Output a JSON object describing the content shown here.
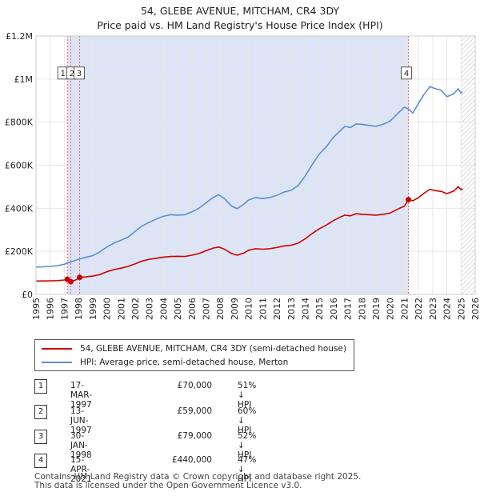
{
  "title_line1": "54, GLEBE AVENUE, MITCHAM, CR4 3DY",
  "title_line2": "Price paid vs. HM Land Registry's House Price Index (HPI)",
  "chart_data": {
    "type": "line",
    "x_start": 1995,
    "x_end": 2026,
    "ylim": [
      0,
      1200000
    ],
    "y_ticks": [
      {
        "value": 0,
        "label": "£0"
      },
      {
        "value": 200000,
        "label": "£200K"
      },
      {
        "value": 400000,
        "label": "£400K"
      },
      {
        "value": 600000,
        "label": "£600K"
      },
      {
        "value": 800000,
        "label": "£800K"
      },
      {
        "value": 1000000,
        "label": "£1M"
      },
      {
        "value": 1200000,
        "label": "£1.2M"
      }
    ],
    "x_ticks": [
      "1995",
      "1996",
      "1997",
      "1998",
      "1999",
      "2000",
      "2001",
      "2002",
      "2003",
      "2004",
      "2005",
      "2006",
      "2007",
      "2008",
      "2009",
      "2010",
      "2011",
      "2012",
      "2013",
      "2014",
      "2015",
      "2016",
      "2017",
      "2018",
      "2019",
      "2020",
      "2021",
      "2022",
      "2023",
      "2024",
      "2025",
      "2026"
    ],
    "grid": true,
    "shaded_from": 1997.21,
    "shaded_to": 2021.29,
    "hatched_from": 2025.0,
    "colors": {
      "property": "#cc0000",
      "hpi": "#5b8fd0",
      "shade": "#dde4f5",
      "grid": "#e6e6e6",
      "marker_line": "#e06060"
    },
    "series": [
      {
        "name": "54, GLEBE AVENUE, MITCHAM, CR4 3DY (semi-detached house)",
        "color": "#cc0000",
        "points": [
          [
            1995.0,
            62000
          ],
          [
            1995.5,
            62500
          ],
          [
            1996.0,
            63000
          ],
          [
            1996.5,
            64000
          ],
          [
            1997.0,
            67000
          ],
          [
            1997.21,
            70000
          ],
          [
            1997.3,
            64000
          ],
          [
            1997.45,
            59000
          ],
          [
            1997.6,
            62000
          ],
          [
            1997.8,
            67000
          ],
          [
            1998.08,
            79000
          ],
          [
            1998.5,
            81000
          ],
          [
            1999.0,
            85000
          ],
          [
            1999.5,
            92000
          ],
          [
            2000.0,
            105000
          ],
          [
            2000.5,
            115000
          ],
          [
            2001.0,
            122000
          ],
          [
            2001.5,
            130000
          ],
          [
            2002.0,
            142000
          ],
          [
            2002.5,
            155000
          ],
          [
            2003.0,
            163000
          ],
          [
            2003.5,
            168000
          ],
          [
            2004.0,
            173000
          ],
          [
            2004.5,
            176000
          ],
          [
            2005.0,
            177000
          ],
          [
            2005.5,
            176000
          ],
          [
            2006.0,
            182000
          ],
          [
            2006.5,
            190000
          ],
          [
            2007.0,
            203000
          ],
          [
            2007.5,
            215000
          ],
          [
            2007.9,
            220000
          ],
          [
            2008.3,
            210000
          ],
          [
            2008.8,
            190000
          ],
          [
            2009.2,
            182000
          ],
          [
            2009.7,
            193000
          ],
          [
            2010.0,
            205000
          ],
          [
            2010.5,
            212000
          ],
          [
            2011.0,
            210000
          ],
          [
            2011.5,
            212000
          ],
          [
            2012.0,
            218000
          ],
          [
            2012.5,
            225000
          ],
          [
            2013.0,
            228000
          ],
          [
            2013.5,
            238000
          ],
          [
            2014.0,
            258000
          ],
          [
            2014.5,
            283000
          ],
          [
            2015.0,
            305000
          ],
          [
            2015.5,
            322000
          ],
          [
            2016.0,
            343000
          ],
          [
            2016.5,
            360000
          ],
          [
            2016.8,
            368000
          ],
          [
            2017.2,
            365000
          ],
          [
            2017.6,
            375000
          ],
          [
            2018.0,
            372000
          ],
          [
            2018.5,
            370000
          ],
          [
            2019.0,
            368000
          ],
          [
            2019.5,
            372000
          ],
          [
            2020.0,
            378000
          ],
          [
            2020.5,
            395000
          ],
          [
            2021.0,
            410000
          ],
          [
            2021.29,
            440000
          ],
          [
            2021.6,
            435000
          ],
          [
            2022.0,
            450000
          ],
          [
            2022.4,
            470000
          ],
          [
            2022.8,
            488000
          ],
          [
            2023.2,
            482000
          ],
          [
            2023.6,
            478000
          ],
          [
            2024.0,
            468000
          ],
          [
            2024.5,
            480000
          ],
          [
            2024.8,
            500000
          ],
          [
            2025.0,
            486000
          ],
          [
            2025.1,
            492000
          ]
        ]
      },
      {
        "name": "HPI: Average price, semi-detached house, Merton",
        "color": "#5b8fd0",
        "points": [
          [
            1995.0,
            127000
          ],
          [
            1995.5,
            128000
          ],
          [
            1996.0,
            130000
          ],
          [
            1996.5,
            133000
          ],
          [
            1997.0,
            140000
          ],
          [
            1997.5,
            152000
          ],
          [
            1998.0,
            163000
          ],
          [
            1998.5,
            172000
          ],
          [
            1999.0,
            180000
          ],
          [
            1999.5,
            197000
          ],
          [
            2000.0,
            220000
          ],
          [
            2000.5,
            238000
          ],
          [
            2001.0,
            252000
          ],
          [
            2001.5,
            266000
          ],
          [
            2002.0,
            293000
          ],
          [
            2002.5,
            318000
          ],
          [
            2003.0,
            335000
          ],
          [
            2003.5,
            350000
          ],
          [
            2004.0,
            363000
          ],
          [
            2004.5,
            370000
          ],
          [
            2005.0,
            368000
          ],
          [
            2005.5,
            370000
          ],
          [
            2006.0,
            383000
          ],
          [
            2006.5,
            400000
          ],
          [
            2007.0,
            425000
          ],
          [
            2007.5,
            450000
          ],
          [
            2007.9,
            463000
          ],
          [
            2008.3,
            445000
          ],
          [
            2008.8,
            410000
          ],
          [
            2009.2,
            398000
          ],
          [
            2009.7,
            420000
          ],
          [
            2010.0,
            438000
          ],
          [
            2010.5,
            450000
          ],
          [
            2011.0,
            445000
          ],
          [
            2011.5,
            450000
          ],
          [
            2012.0,
            460000
          ],
          [
            2012.5,
            475000
          ],
          [
            2013.0,
            483000
          ],
          [
            2013.5,
            505000
          ],
          [
            2014.0,
            550000
          ],
          [
            2014.5,
            603000
          ],
          [
            2015.0,
            652000
          ],
          [
            2015.5,
            686000
          ],
          [
            2016.0,
            730000
          ],
          [
            2016.5,
            762000
          ],
          [
            2016.8,
            780000
          ],
          [
            2017.2,
            775000
          ],
          [
            2017.6,
            792000
          ],
          [
            2018.0,
            790000
          ],
          [
            2018.5,
            785000
          ],
          [
            2019.0,
            780000
          ],
          [
            2019.5,
            790000
          ],
          [
            2020.0,
            805000
          ],
          [
            2020.5,
            838000
          ],
          [
            2021.0,
            870000
          ],
          [
            2021.3,
            860000
          ],
          [
            2021.6,
            842000
          ],
          [
            2022.0,
            888000
          ],
          [
            2022.4,
            930000
          ],
          [
            2022.8,
            965000
          ],
          [
            2023.2,
            955000
          ],
          [
            2023.6,
            948000
          ],
          [
            2024.0,
            918000
          ],
          [
            2024.5,
            932000
          ],
          [
            2024.8,
            955000
          ],
          [
            2025.0,
            935000
          ],
          [
            2025.1,
            940000
          ]
        ]
      }
    ],
    "sales": [
      {
        "n": "1",
        "x": 1997.21,
        "price": 70000
      },
      {
        "n": "2",
        "x": 1997.45,
        "price": 59000
      },
      {
        "n": "3",
        "x": 1998.08,
        "price": 79000
      },
      {
        "n": "4",
        "x": 2021.29,
        "price": 440000
      }
    ]
  },
  "legend": {
    "property": "54, GLEBE AVENUE, MITCHAM, CR4 3DY (semi-detached house)",
    "hpi": "HPI: Average price, semi-detached house, Merton"
  },
  "transactions": [
    {
      "n": "1",
      "date": "17-MAR-1997",
      "price": "£70,000",
      "hpi": "51% ↓ HPI"
    },
    {
      "n": "2",
      "date": "13-JUN-1997",
      "price": "£59,000",
      "hpi": "60% ↓ HPI"
    },
    {
      "n": "3",
      "date": "30-JAN-1998",
      "price": "£79,000",
      "hpi": "52% ↓ HPI"
    },
    {
      "n": "4",
      "date": "15-APR-2021",
      "price": "£440,000",
      "hpi": "47% ↓ HPI"
    }
  ],
  "footer_line1": "Contains HM Land Registry data © Crown copyright and database right 2025.",
  "footer_line2": "This data is licensed under the Open Government Licence v3.0."
}
